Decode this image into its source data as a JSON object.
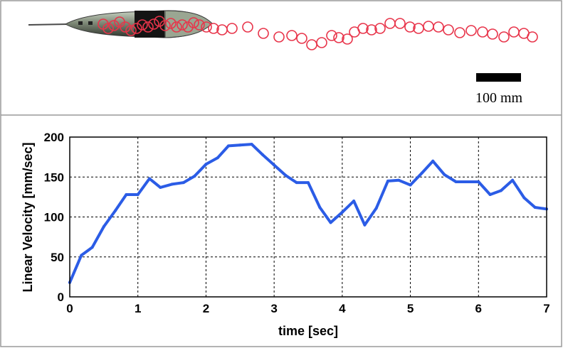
{
  "top_panel": {
    "scale_bar_label": "100 mm",
    "trajectory_color": "#e8344a"
  },
  "chart_data": {
    "type": "line",
    "xlabel": "time [sec]",
    "ylabel": "Linear Velocity [mm/sec]",
    "xlim": [
      0,
      7
    ],
    "ylim": [
      0,
      200
    ],
    "xticks": [
      0,
      1,
      2,
      3,
      4,
      5,
      6,
      7
    ],
    "yticks": [
      0,
      50,
      100,
      150,
      200
    ],
    "grid": true,
    "series": [
      {
        "color": "#2b5ce6",
        "x": [
          0,
          0.17,
          0.33,
          0.5,
          0.67,
          0.83,
          1.0,
          1.17,
          1.33,
          1.5,
          1.67,
          1.83,
          2.0,
          2.17,
          2.33,
          2.5,
          2.67,
          2.83,
          3.0,
          3.17,
          3.33,
          3.5,
          3.67,
          3.83,
          4.0,
          4.17,
          4.33,
          4.5,
          4.67,
          4.83,
          5.0,
          5.17,
          5.33,
          5.5,
          5.67,
          5.83,
          6.0,
          6.17,
          6.33,
          6.5,
          6.67,
          6.83,
          7.0
        ],
        "y": [
          18,
          52,
          62,
          88,
          108,
          128,
          128,
          148,
          137,
          141,
          143,
          151,
          166,
          174,
          189,
          190,
          191,
          178,
          165,
          152,
          143,
          143,
          112,
          93,
          106,
          120,
          90,
          111,
          145,
          146,
          140,
          155,
          170,
          153,
          144,
          144,
          144,
          128,
          133,
          146,
          124,
          112,
          110
        ]
      }
    ]
  }
}
